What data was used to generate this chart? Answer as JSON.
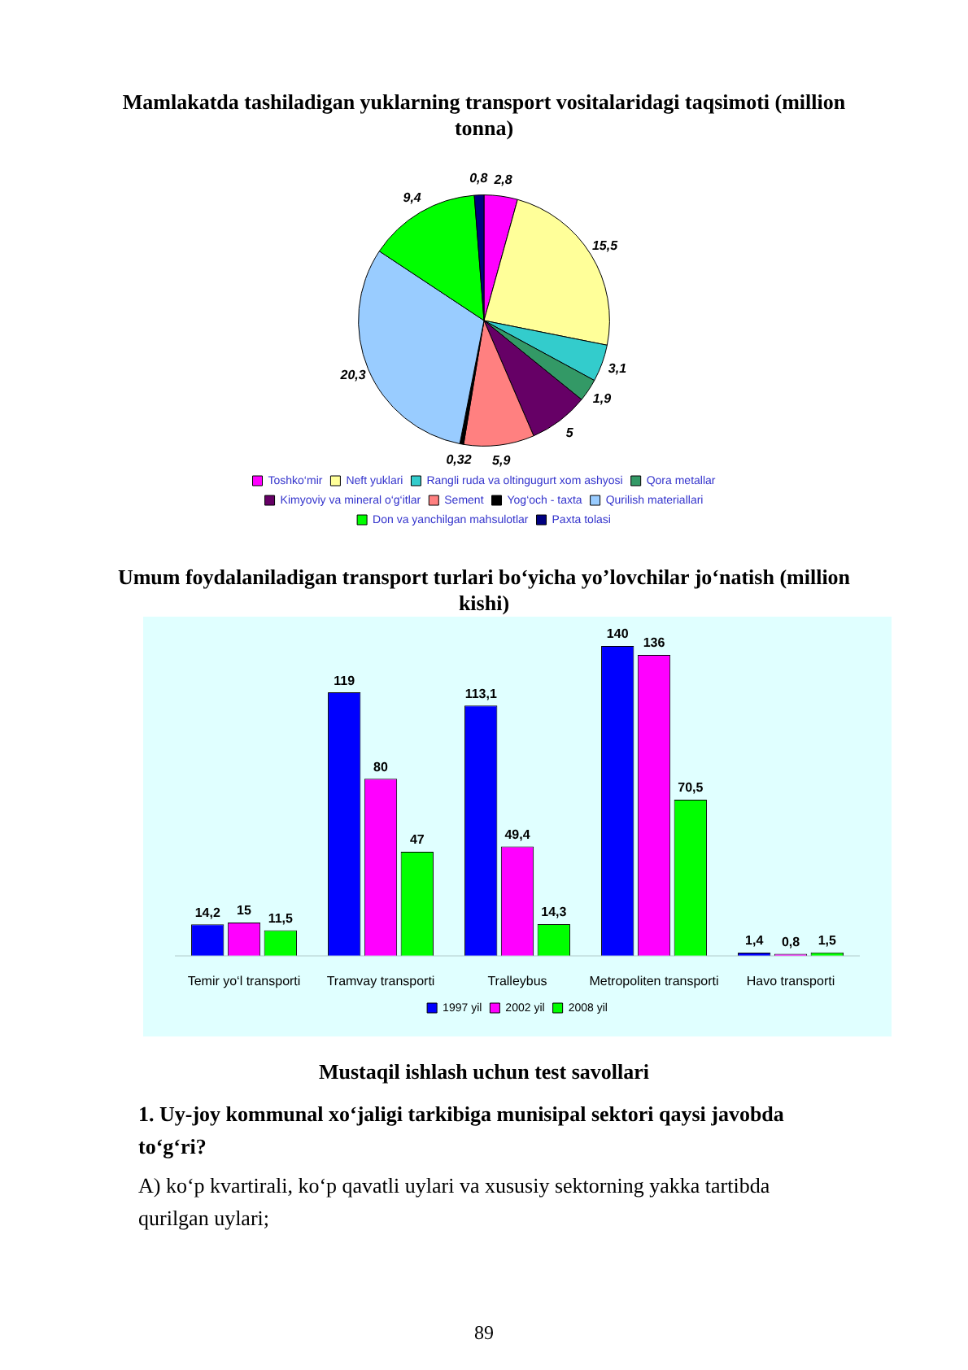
{
  "chart_data": [
    {
      "type": "pie",
      "title": "Mamlakatda tashiladigan yuklarning transport vositalaridagi taqsimoti (million tonna)",
      "categories": [
        "Toshko‘mir",
        "Neft yuklari",
        "Rangli ruda va oltingugurt xom ashyosi",
        "Qora metallar",
        "Kimyoviy va mineral o‘g‘itlar",
        "Sement",
        "Yog‘och - taxta",
        "Qurilish materiallari",
        "Don va yanchilgan mahsulotlar",
        "Paxta tolasi"
      ],
      "values": [
        2.8,
        15.5,
        3.1,
        1.9,
        5,
        5.9,
        0.32,
        20.3,
        9.4,
        0.8
      ],
      "value_labels": [
        "2,8",
        "15,5",
        "3,1",
        "1,9",
        "5",
        "5,9",
        "0,32",
        "20,3",
        "9,4",
        "0,8"
      ],
      "colors": [
        "#ff00ff",
        "#ffff99",
        "#33cccc",
        "#339966",
        "#660066",
        "#ff8080",
        "#000000",
        "#99ccff",
        "#00ff00",
        "#000080"
      ],
      "legend": "bottom"
    },
    {
      "type": "bar",
      "title": "Umum foydalaniladigan transport turlari bo‘yicha yo’lovchilar jo‘natish (million kishi)",
      "categories": [
        "Temir yo‘l transporti",
        "Tramvay transporti",
        "Tralleybus",
        "Metropoliten transporti",
        "Havo transporti"
      ],
      "series": [
        {
          "name": "1997 yil",
          "color": "#0000ff",
          "values": [
            14.2,
            119,
            113.1,
            140,
            1.4
          ],
          "value_labels": [
            "14,2",
            "119",
            "113,1",
            "140",
            "1,4"
          ]
        },
        {
          "name": "2002 yil",
          "color": "#ff00ff",
          "values": [
            15,
            80,
            49.4,
            136,
            0.8
          ],
          "value_labels": [
            "15",
            "80",
            "49,4",
            "136",
            "0,8"
          ]
        },
        {
          "name": "2008 yil",
          "color": "#00ff00",
          "values": [
            11.5,
            47,
            14.3,
            70.5,
            1.5
          ],
          "value_labels": [
            "11,5",
            "47",
            "14,3",
            "70,5",
            "1,5"
          ]
        }
      ],
      "tick_labels": "x",
      "grid": false,
      "legend": "bottom",
      "annotations": [
        "Mustaqil ishlash uchun test savollari",
        "1. Uy-joy kommunal xo‘jaligi tarkibiga munisipal sektori qaysi javobda to‘g‘ri?",
        "A) ko‘p kvartirali, ko‘p qavatli uylari va xususiy sektorning yakka tartibda qurilgan uylari;",
        "89"
      ]
    }
  ]
}
